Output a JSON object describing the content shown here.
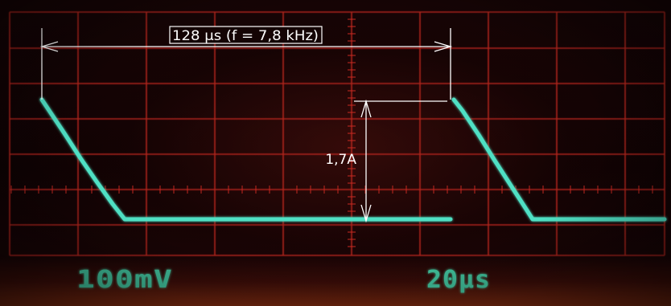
{
  "annotations": {
    "period_label": "128 µs (f = 7,8 kHz)",
    "amplitude_label": "1,7A"
  },
  "readouts": {
    "volts_per_div": "100mV",
    "time_per_div": "20µs"
  },
  "colors": {
    "graticule": "#d12a23",
    "trace": "#4fe0c4",
    "readout": "#3fbf9a",
    "annotation": "#ffffff"
  }
}
